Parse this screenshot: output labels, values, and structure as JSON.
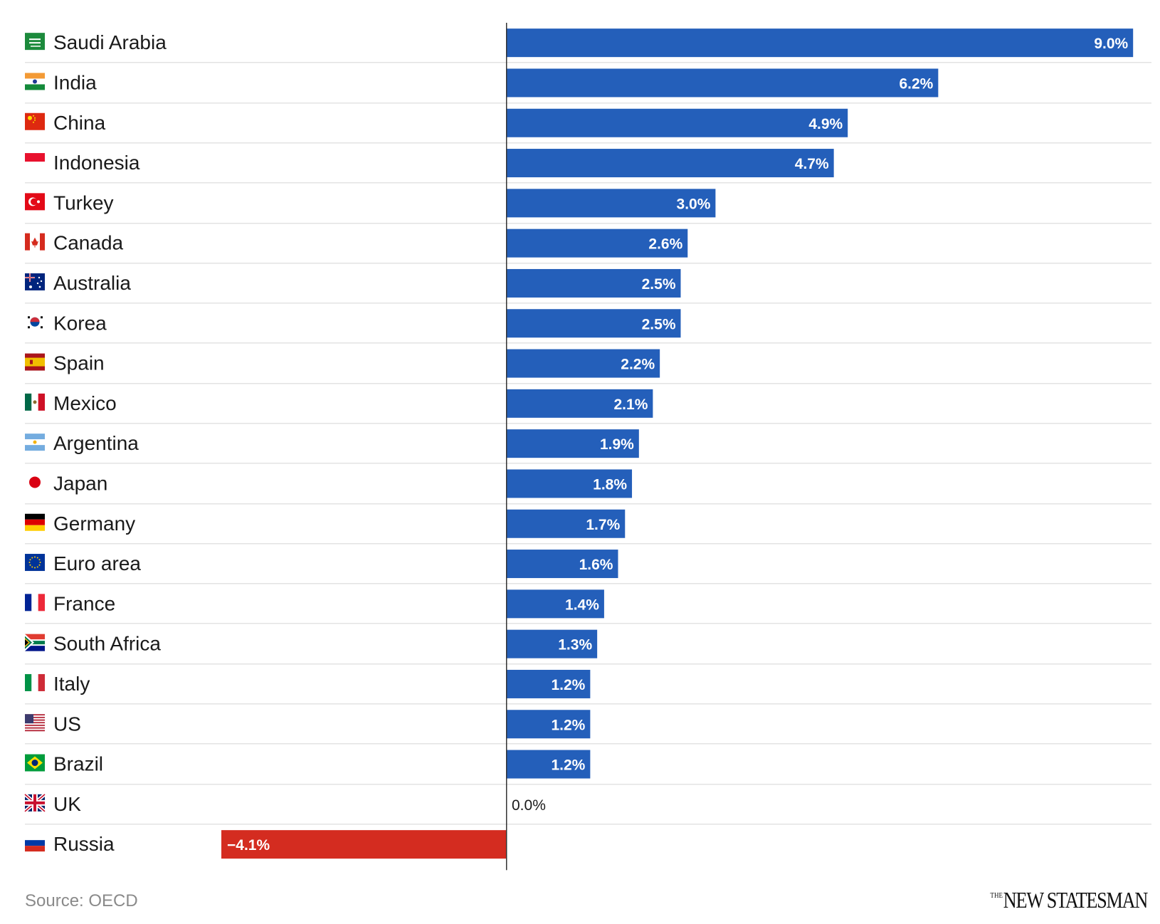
{
  "chart_data": {
    "type": "bar",
    "orientation": "horizontal",
    "categories": [
      "Saudi Arabia",
      "India",
      "China",
      "Indonesia",
      "Turkey",
      "Canada",
      "Australia",
      "Korea",
      "Spain",
      "Mexico",
      "Argentina",
      "Japan",
      "Germany",
      "Euro area",
      "France",
      "South Africa",
      "Italy",
      "US",
      "Brazil",
      "UK",
      "Russia"
    ],
    "values": [
      9.0,
      6.2,
      4.9,
      4.7,
      3.0,
      2.6,
      2.5,
      2.5,
      2.2,
      2.1,
      1.9,
      1.8,
      1.7,
      1.6,
      1.4,
      1.3,
      1.2,
      1.2,
      1.2,
      0.0,
      -4.1
    ],
    "value_labels": [
      "9.0%",
      "6.2%",
      "4.9%",
      "4.7%",
      "3.0%",
      "2.6%",
      "2.5%",
      "2.5%",
      "2.2%",
      "2.1%",
      "1.9%",
      "1.8%",
      "1.7%",
      "1.6%",
      "1.4%",
      "1.3%",
      "1.2%",
      "1.2%",
      "1.2%",
      "0.0%",
      "−4.1%"
    ],
    "flag_icons": [
      "flag-saudi-arabia-icon",
      "flag-india-icon",
      "flag-china-icon",
      "flag-indonesia-icon",
      "flag-turkey-icon",
      "flag-canada-icon",
      "flag-australia-icon",
      "flag-korea-icon",
      "flag-spain-icon",
      "flag-mexico-icon",
      "flag-argentina-icon",
      "flag-japan-icon",
      "flag-germany-icon",
      "flag-euro-area-icon",
      "flag-france-icon",
      "flag-south-africa-icon",
      "flag-italy-icon",
      "flag-us-icon",
      "flag-brazil-icon",
      "flag-uk-icon",
      "flag-russia-icon"
    ],
    "xlim": [
      -4.1,
      9.0
    ],
    "grid": false,
    "colors": {
      "positive": "#245fba",
      "negative": "#d42c20",
      "separator": "#e3e3e3",
      "axis": "#333333"
    }
  },
  "source": "Source: OECD",
  "logo": {
    "the": "THE",
    "name": "NEW STATESMAN"
  }
}
